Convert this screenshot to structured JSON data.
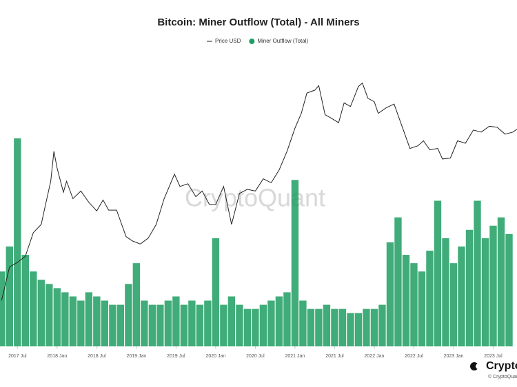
{
  "chart_data": {
    "type": "bar-line",
    "title": "Bitcoin: Miner Outflow (Total) - All Miners",
    "watermark": "CryptoQuant",
    "brand": "CryptoQuant",
    "copyright": "© CryptoQuant",
    "legend": "top",
    "y_scale": "log",
    "xlim": [
      2017.28,
      2023.8
    ],
    "xticks": [
      {
        "value": 2017.5,
        "label": "2017 Jul"
      },
      {
        "value": 2018.0,
        "label": "2018 Jan"
      },
      {
        "value": 2018.5,
        "label": "2018 Jul"
      },
      {
        "value": 2019.0,
        "label": "2019 Jan"
      },
      {
        "value": 2019.5,
        "label": "2019 Jul"
      },
      {
        "value": 2020.0,
        "label": "2020 Jan"
      },
      {
        "value": 2020.5,
        "label": "2020 Jul"
      },
      {
        "value": 2021.0,
        "label": "2021 Jan"
      },
      {
        "value": 2021.5,
        "label": "2021 Jul"
      },
      {
        "value": 2022.0,
        "label": "2022 Jan"
      },
      {
        "value": 2022.5,
        "label": "2022 Jul"
      },
      {
        "value": 2023.0,
        "label": "2023 Jan"
      },
      {
        "value": 2023.5,
        "label": "2023 Jul"
      }
    ],
    "ylim": [
      540,
      110000
    ],
    "y2lim": [
      0,
      7000
    ],
    "series": [
      {
        "name": "Price USD",
        "type": "line",
        "color": "#222222",
        "x": [
          2017.3,
          2017.4,
          2017.5,
          2017.6,
          2017.7,
          2017.8,
          2017.85,
          2017.92,
          2017.96,
          2018.0,
          2018.08,
          2018.12,
          2018.2,
          2018.3,
          2018.4,
          2018.5,
          2018.58,
          2018.65,
          2018.75,
          2018.87,
          2018.95,
          2019.05,
          2019.15,
          2019.25,
          2019.35,
          2019.48,
          2019.55,
          2019.65,
          2019.75,
          2019.83,
          2019.92,
          2020.0,
          2020.1,
          2020.2,
          2020.3,
          2020.4,
          2020.5,
          2020.6,
          2020.7,
          2020.8,
          2020.9,
          2021.0,
          2021.08,
          2021.15,
          2021.25,
          2021.3,
          2021.38,
          2021.45,
          2021.55,
          2021.62,
          2021.7,
          2021.8,
          2021.85,
          2021.92,
          2022.0,
          2022.05,
          2022.15,
          2022.25,
          2022.35,
          2022.45,
          2022.55,
          2022.62,
          2022.7,
          2022.8,
          2022.86,
          2022.96,
          2023.05,
          2023.15,
          2023.25,
          2023.35,
          2023.45,
          2023.55,
          2023.65,
          2023.75,
          2023.8
        ],
        "values": [
          1250,
          2300,
          2500,
          2800,
          4300,
          5000,
          7000,
          11000,
          19000,
          14000,
          9000,
          11000,
          8000,
          9200,
          7500,
          6400,
          7800,
          6500,
          6500,
          4000,
          3700,
          3500,
          3900,
          5000,
          8000,
          12500,
          10000,
          10500,
          8300,
          9200,
          7200,
          7200,
          10000,
          5000,
          8800,
          9500,
          9200,
          11500,
          10700,
          13500,
          19000,
          29000,
          38000,
          55000,
          58000,
          63000,
          37000,
          35000,
          32000,
          46000,
          43000,
          62000,
          66000,
          50000,
          47000,
          38000,
          42000,
          45000,
          30000,
          20000,
          21000,
          23000,
          19500,
          20000,
          16500,
          16800,
          23000,
          22000,
          28000,
          27000,
          30000,
          29500,
          26000,
          27000,
          28500
        ]
      },
      {
        "name": "Miner Outflow (Total)",
        "type": "bar",
        "axis": "y2",
        "color": "#1e9e62",
        "x": [
          2017.3,
          2017.4,
          2017.5,
          2017.6,
          2017.7,
          2017.8,
          2017.9,
          2018.0,
          2018.1,
          2018.2,
          2018.3,
          2018.4,
          2018.5,
          2018.6,
          2018.7,
          2018.8,
          2018.9,
          2019.0,
          2019.1,
          2019.2,
          2019.3,
          2019.4,
          2019.5,
          2019.6,
          2019.7,
          2019.8,
          2019.9,
          2020.0,
          2020.1,
          2020.2,
          2020.3,
          2020.4,
          2020.5,
          2020.6,
          2020.7,
          2020.8,
          2020.9,
          2021.0,
          2021.1,
          2021.2,
          2021.3,
          2021.4,
          2021.5,
          2021.6,
          2021.7,
          2021.8,
          2021.9,
          2022.0,
          2022.1,
          2022.2,
          2022.3,
          2022.4,
          2022.5,
          2022.6,
          2022.7,
          2022.8,
          2022.9,
          2023.0,
          2023.1,
          2023.2,
          2023.3,
          2023.4,
          2023.5,
          2023.6,
          2023.7
        ],
        "values": [
          1800,
          2400,
          5000,
          2200,
          1800,
          1600,
          1500,
          1400,
          1300,
          1200,
          1100,
          1300,
          1200,
          1100,
          1000,
          1000,
          1500,
          2000,
          1100,
          1000,
          1000,
          1100,
          1200,
          1000,
          1100,
          1000,
          1100,
          2600,
          1000,
          1200,
          1000,
          900,
          900,
          1000,
          1100,
          1200,
          1300,
          4000,
          1100,
          900,
          900,
          1000,
          900,
          900,
          800,
          800,
          900,
          900,
          1000,
          2500,
          3100,
          2200,
          2000,
          1800,
          2300,
          3500,
          2600,
          2000,
          2400,
          2800,
          3500,
          2600,
          2900,
          3100,
          2700
        ]
      }
    ]
  }
}
